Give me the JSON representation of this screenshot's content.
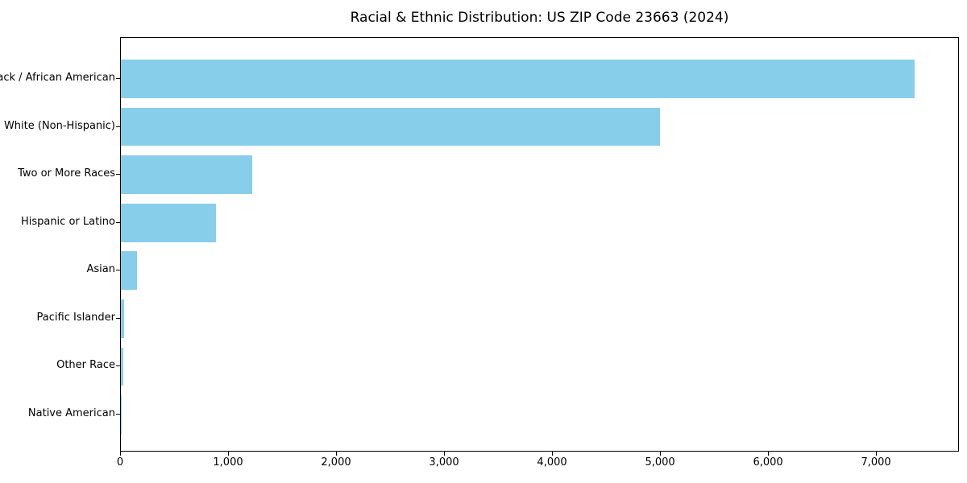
{
  "title": "Racial & Ethnic Distribution: US ZIP Code 23663 (2024)",
  "colors": {
    "bar": "#87CEEB",
    "axis": "#000000",
    "background": "#FFFFFF",
    "text": "#000000"
  },
  "chart_data": {
    "type": "bar",
    "orientation": "horizontal",
    "title": "Racial & Ethnic Distribution: US ZIP Code 23663 (2024)",
    "categories": [
      "Black / African American",
      "White (Non-Hispanic)",
      "Two or More Races",
      "Hispanic or Latino",
      "Asian",
      "Pacific Islander",
      "Other Race",
      "Native American"
    ],
    "values": [
      7365,
      5000,
      1215,
      880,
      148,
      33,
      22,
      6
    ],
    "bar_color": "#87CEEB",
    "xlabel": "",
    "ylabel": "",
    "xlim": [
      0,
      7768
    ],
    "xticks": [
      0,
      1000,
      2000,
      3000,
      4000,
      5000,
      6000,
      7000
    ],
    "xtick_labels": [
      "0",
      "1,000",
      "2,000",
      "3,000",
      "4,000",
      "5,000",
      "6,000",
      "7,000"
    ],
    "grid": false,
    "legend": null
  }
}
